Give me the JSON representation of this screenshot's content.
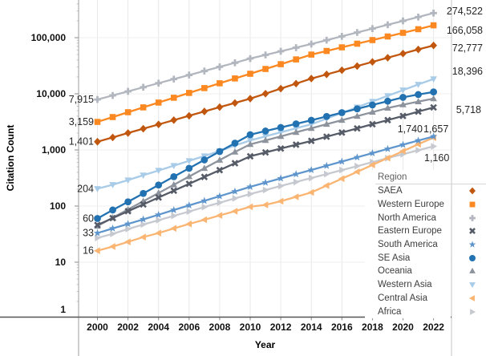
{
  "chart_data": {
    "type": "line",
    "title": "",
    "xlabel": "Year",
    "ylabel": "Citation Count",
    "legend_title": "Region",
    "legend_position": "bottom-right-overlay",
    "y_scale": "log",
    "ylim": [
      1,
      469000
    ],
    "xlim": [
      1998.8,
      2023.2
    ],
    "grid": "both",
    "x_tick_years": [
      2000,
      2002,
      2004,
      2006,
      2008,
      2010,
      2012,
      2014,
      2016,
      2018,
      2020,
      2022
    ],
    "y_ticks": [
      {
        "label": "100,000",
        "value": 100000
      },
      {
        "label": "10,000",
        "value": 10000
      },
      {
        "label": "1,000",
        "value": 1000
      },
      {
        "label": "100",
        "value": 100
      },
      {
        "label": "10",
        "value": 10
      },
      {
        "label": "1",
        "value": 1
      }
    ],
    "years": [
      2000,
      2001,
      2002,
      2003,
      2004,
      2005,
      2006,
      2007,
      2008,
      2009,
      2010,
      2011,
      2012,
      2013,
      2014,
      2015,
      2016,
      2017,
      2018,
      2019,
      2020,
      2021,
      2022
    ],
    "series": [
      {
        "name": "SAEA",
        "marker": "diamond",
        "color": "#C1570E",
        "start_label": "1,401",
        "end_label": "72,777",
        "values": [
          1401,
          1670,
          2000,
          2390,
          2850,
          3400,
          4060,
          4850,
          5790,
          6870,
          8200,
          10070,
          12370,
          15200,
          18700,
          22200,
          26300,
          31200,
          37000,
          43900,
          52100,
          61800,
          72777
        ]
      },
      {
        "name": "Western Europe",
        "marker": "square",
        "color": "#FB8820",
        "start_label": "3,159",
        "end_label": "166,058",
        "values": [
          3159,
          3850,
          4700,
          5730,
          6980,
          8510,
          10370,
          12640,
          15400,
          18770,
          22750,
          27700,
          33700,
          41000,
          50000,
          58000,
          67300,
          78100,
          90600,
          105100,
          122000,
          141500,
          166058
        ]
      },
      {
        "name": "North America",
        "marker": "plus",
        "color": "#B2B7BF",
        "start_label": "7,915",
        "end_label": "274,522",
        "values": [
          7915,
          9350,
          11050,
          13100,
          15500,
          18300,
          21600,
          25500,
          30200,
          35700,
          42500,
          49300,
          57200,
          66400,
          77000,
          90200,
          105700,
          123800,
          145000,
          170000,
          199000,
          233000,
          274522
        ]
      },
      {
        "name": "Eastern Europe",
        "marker": "x",
        "color": "#555B67",
        "start_label": "",
        "end_label": "5,718",
        "values": [
          46,
          61,
          81,
          107,
          142,
          188,
          249,
          330,
          437,
          580,
          770,
          903,
          1060,
          1240,
          1450,
          1720,
          2040,
          2420,
          2870,
          3400,
          4030,
          4820,
          5718
        ]
      },
      {
        "name": "South America",
        "marker": "star",
        "color": "#5E95CC",
        "start_label": "33",
        "end_label": "1,740",
        "values": [
          33,
          40,
          48,
          58,
          70,
          85,
          103,
          124,
          150,
          182,
          220,
          262,
          311,
          370,
          440,
          523,
          621,
          738,
          877,
          1042,
          1238,
          1470,
          1740
        ]
      },
      {
        "name": "SE Asia",
        "marker": "circle",
        "color": "#2272B2",
        "start_label": "60",
        "end_label": "",
        "values": [
          60,
          85,
          119,
          168,
          237,
          334,
          471,
          664,
          937,
          1322,
          1868,
          2170,
          2510,
          2910,
          3380,
          3950,
          4620,
          5400,
          6320,
          7390,
          8640,
          9700,
          10800
        ]
      },
      {
        "name": "Oceania",
        "marker": "triangle-up",
        "color": "#8D939C",
        "start_label": "",
        "end_label": "",
        "values": [
          44,
          62,
          87,
          122,
          171,
          240,
          336,
          471,
          660,
          920,
          1260,
          1480,
          1745,
          2060,
          2430,
          2870,
          3390,
          4000,
          4720,
          5570,
          6400,
          7250,
          8200
        ]
      },
      {
        "name": "Western Asia",
        "marker": "triangle-down",
        "color": "#A8CBE8",
        "start_label": "204",
        "end_label": "18,396",
        "values": [
          204,
          240,
          290,
          355,
          430,
          525,
          640,
          780,
          960,
          1200,
          1480,
          1750,
          2060,
          2430,
          2865,
          3620,
          4570,
          5770,
          7290,
          9210,
          11630,
          14690,
          18396
        ]
      },
      {
        "name": "Central Asia",
        "marker": "triangle-left",
        "color": "#FBB572",
        "start_label": "16",
        "end_label": "1,657",
        "values": [
          16,
          19,
          23,
          28,
          33,
          40,
          48,
          57,
          68,
          81,
          97,
          105,
          122,
          146,
          175,
          232,
          308,
          408,
          541,
          718,
          952,
          1263,
          1657
        ]
      },
      {
        "name": "Africa",
        "marker": "triangle-right",
        "color": "#C6CAD0",
        "start_label": "",
        "end_label": "1,160",
        "values": [
          27,
          32,
          39,
          47,
          56,
          67,
          80,
          96,
          115,
          137,
          164,
          193,
          228,
          268,
          316,
          372,
          438,
          515,
          607,
          714,
          840,
          988,
          1160
        ]
      }
    ]
  }
}
